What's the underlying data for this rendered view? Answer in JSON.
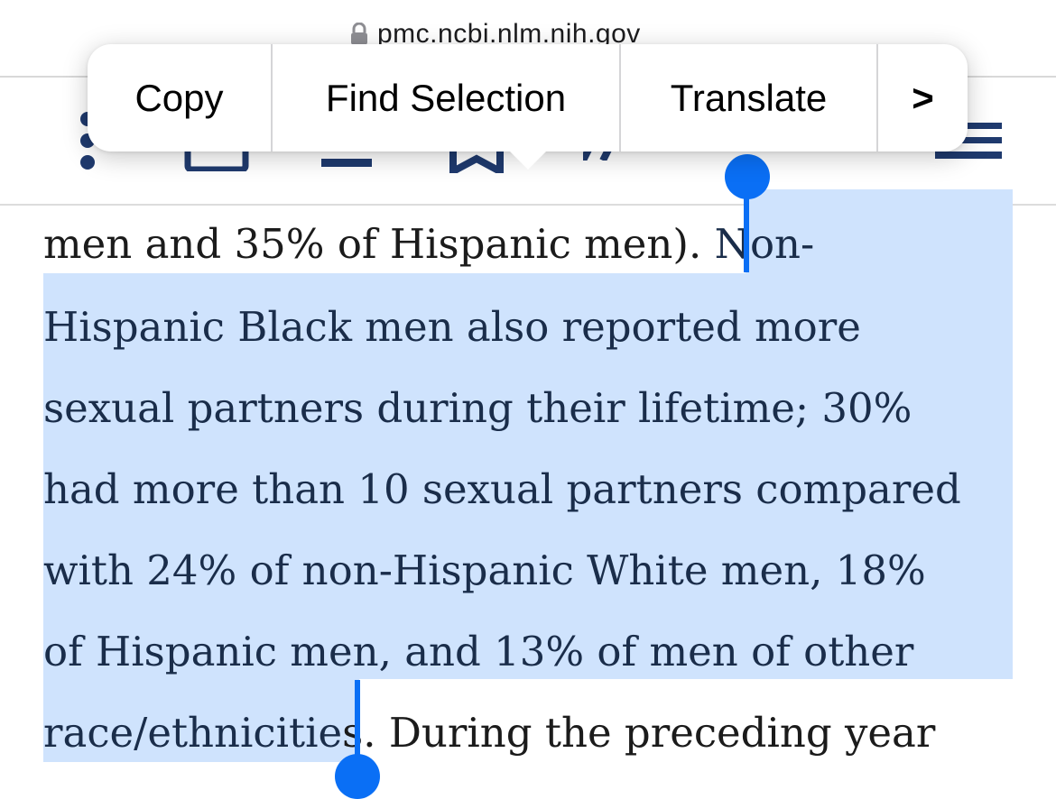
{
  "browser": {
    "url": "pmc.ncbi.nlm.nih.gov",
    "lock_icon": "lock-icon"
  },
  "context_menu": {
    "copy": "Copy",
    "find_selection": "Find Selection",
    "translate": "Translate",
    "more": ">"
  },
  "toolbar": {
    "icons": [
      "more-options-icon",
      "cite-icon",
      "download-icon",
      "bookmark-icon",
      "quote-icon",
      "share-icon",
      "outline-menu-icon"
    ]
  },
  "article": {
    "lines": [
      {
        "plain": "men and 35% of Hispanic men). ",
        "selected": "Non-"
      },
      {
        "selected": "Hispanic Black men also reported more"
      },
      {
        "selected": "sexual partners during their lifetime; 30%"
      },
      {
        "selected": "had more than 10 sexual partners compared"
      },
      {
        "selected": "with 24% of non-Hispanic White men, 18%"
      },
      {
        "selected": "of Hispanic men, and 13% of men of other"
      },
      {
        "selected": "race/ethniciti",
        "selected_tail": "e",
        "plain": "s. During the preceding year"
      }
    ]
  },
  "colors": {
    "selection": "#cfe3fd",
    "handle": "#0a6ff5",
    "icon_navy": "#1f3a6e"
  }
}
